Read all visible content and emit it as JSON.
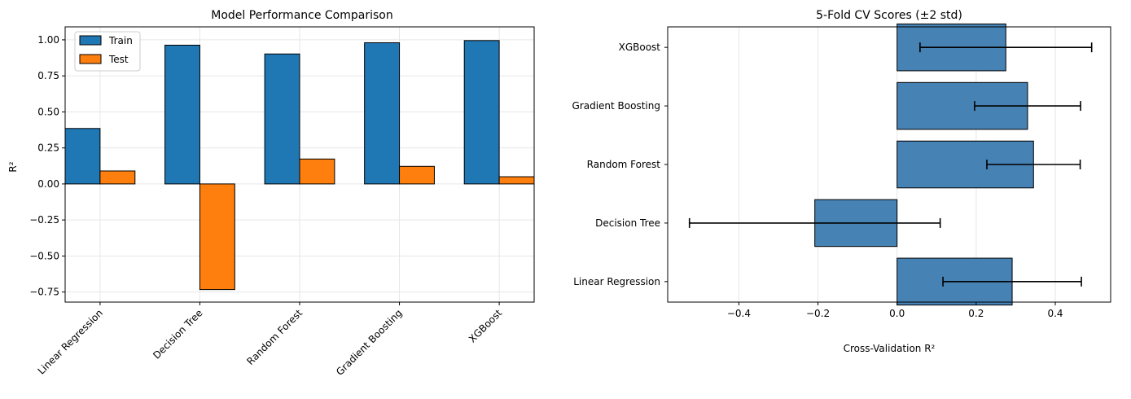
{
  "chart_data": [
    {
      "type": "bar",
      "title": "Model Performance Comparison",
      "xlabel": "",
      "ylabel": "R²",
      "categories": [
        "Linear Regression",
        "Decision Tree",
        "Random Forest",
        "Gradient Boosting",
        "XGBoost"
      ],
      "series": [
        {
          "name": "Train",
          "values": [
            0.385,
            0.963,
            0.902,
            0.98,
            0.995
          ],
          "color": "#1f77b4"
        },
        {
          "name": "Test",
          "values": [
            0.09,
            -0.733,
            0.173,
            0.122,
            0.05
          ],
          "color": "#ff7f0e"
        }
      ],
      "ylim": [
        -0.82,
        1.09
      ],
      "yticks": [
        -0.75,
        -0.5,
        -0.25,
        0.0,
        0.25,
        0.5,
        0.75,
        1.0
      ],
      "ytick_labels": [
        "−0.75",
        "−0.50",
        "−0.25",
        "0.00",
        "0.25",
        "0.50",
        "0.75",
        "1.00"
      ],
      "grid": true,
      "legend": "top-left"
    },
    {
      "type": "bar",
      "orientation": "horizontal",
      "title": "5-Fold CV Scores (±2 std)",
      "xlabel": "Cross-Validation R²",
      "ylabel": "",
      "categories": [
        "Linear Regression",
        "Decision Tree",
        "Random Forest",
        "Gradient Boosting",
        "XGBoost"
      ],
      "values": [
        0.291,
        -0.208,
        0.345,
        0.33,
        0.275
      ],
      "error_low": [
        0.116,
        -0.525,
        0.227,
        0.196,
        0.058
      ],
      "error_high": [
        0.466,
        0.109,
        0.463,
        0.464,
        0.492
      ],
      "color": "#4682b4",
      "xlim": [
        -0.58,
        0.54
      ],
      "xticks": [
        -0.4,
        -0.2,
        0.0,
        0.2,
        0.4
      ],
      "xtick_labels": [
        "−0.4",
        "−0.2",
        "0.0",
        "0.2",
        "0.4"
      ],
      "grid": true
    }
  ]
}
